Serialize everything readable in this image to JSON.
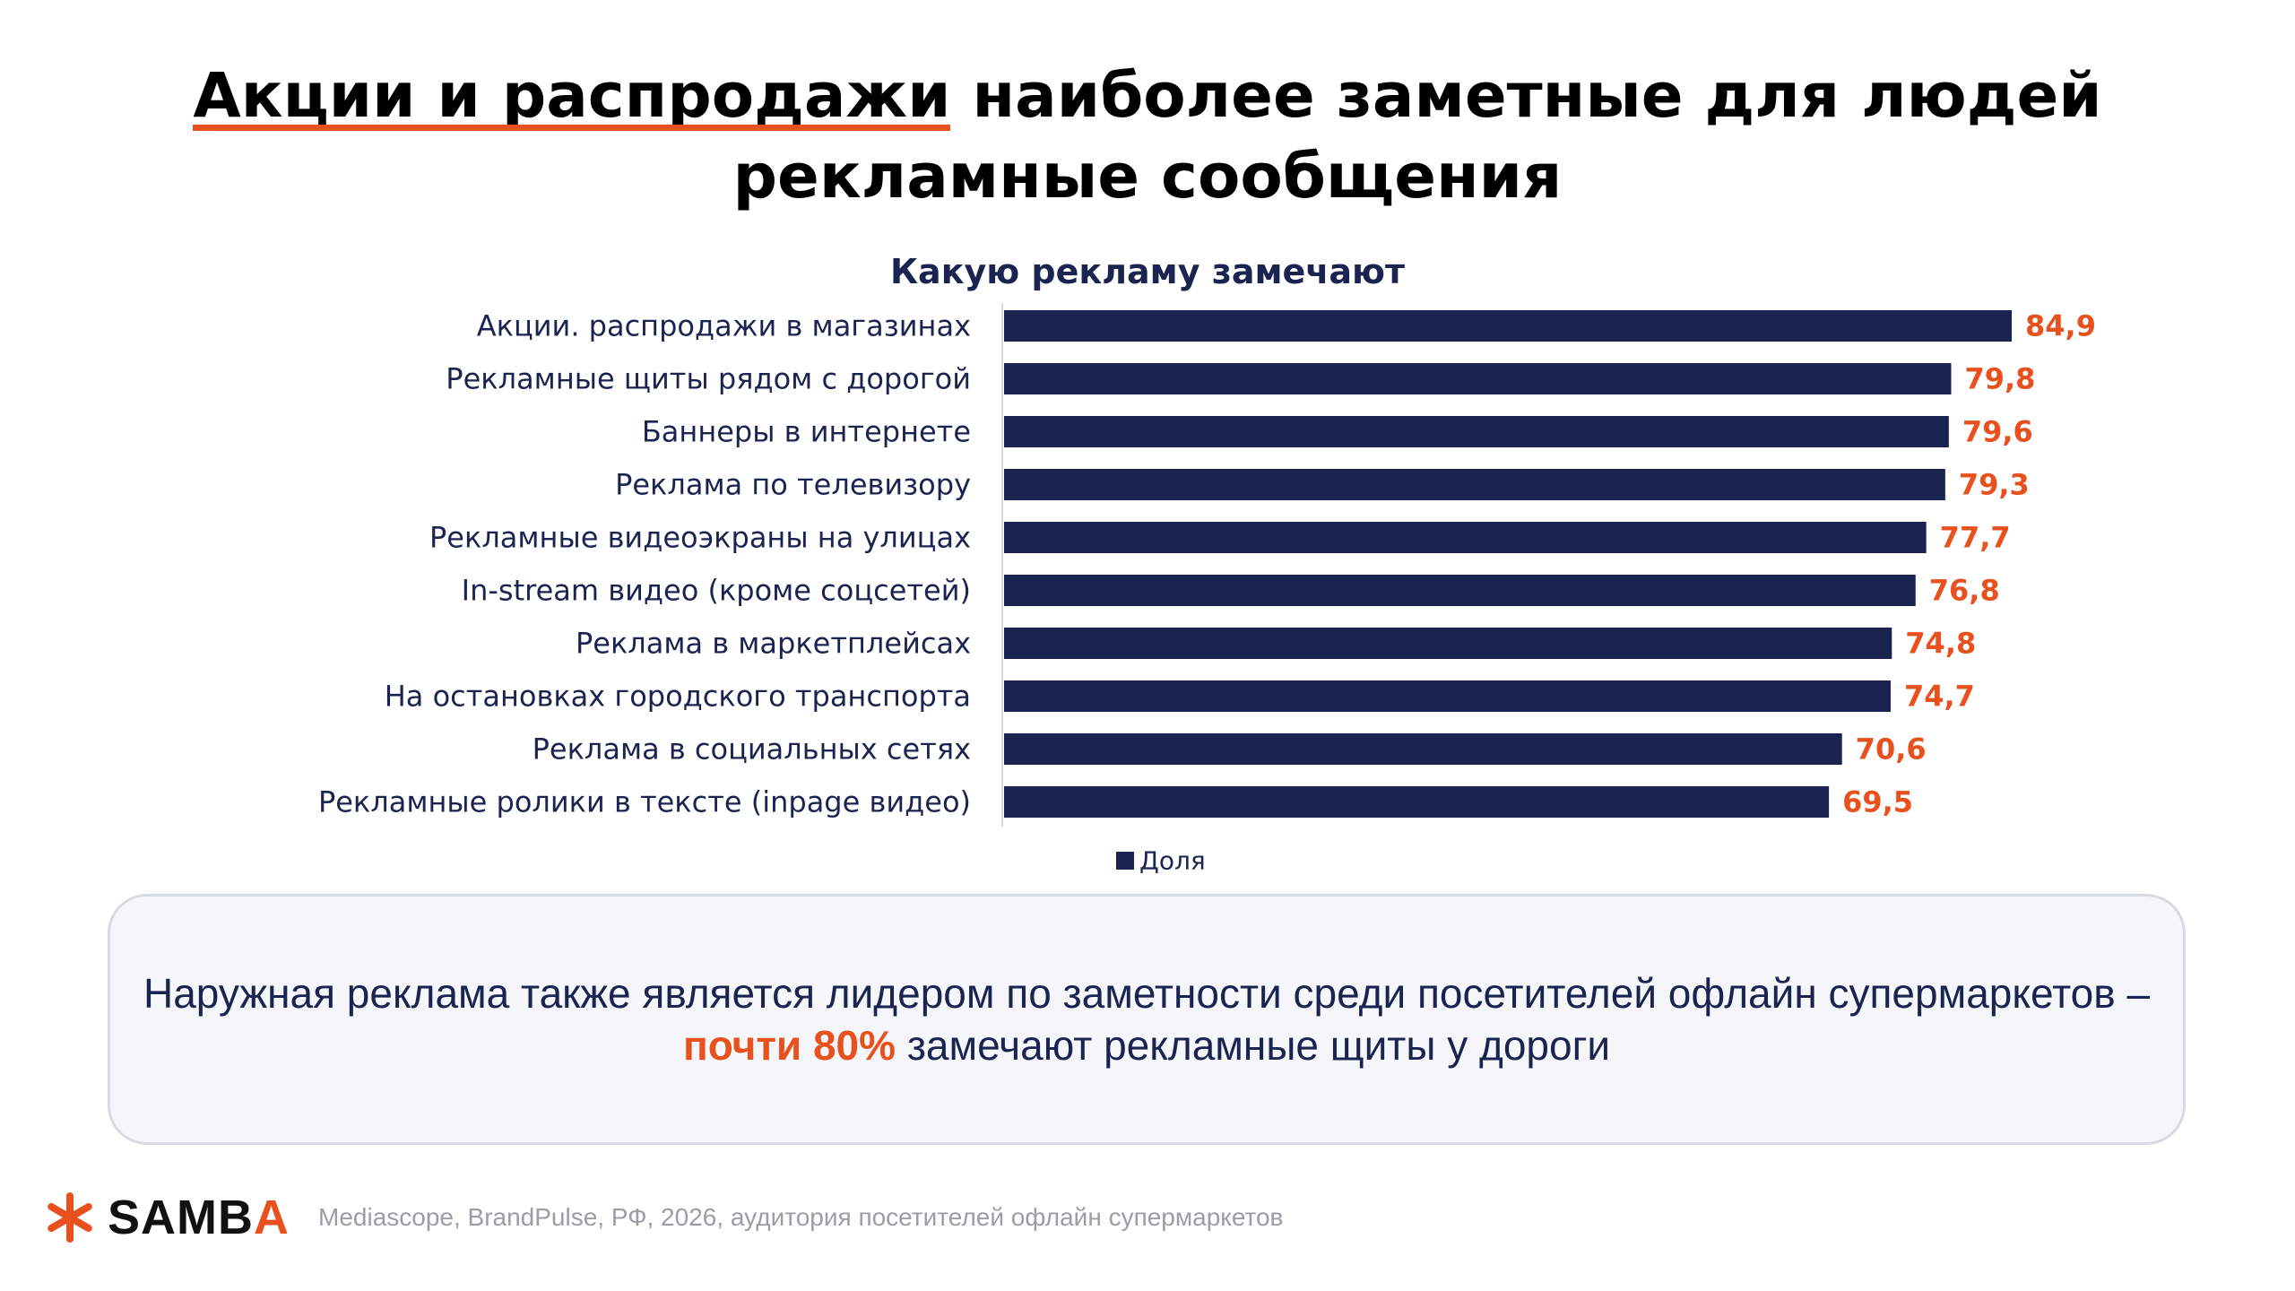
{
  "title": {
    "highlight": "Акции и распродажи",
    "line1_rest": "наиболее заметные для людей",
    "line2": "рекламные сообщения"
  },
  "colors": {
    "bar": "#1B2451",
    "value_label": "#E8501E",
    "accent": "#E8501E",
    "category_label": "#1B2451"
  },
  "chart_data": {
    "type": "bar",
    "orientation": "horizontal",
    "title": "Какую рекламу замечают",
    "categories": [
      "Акции. распродажи в магазинах",
      "Рекламные щиты рядом с дорогой",
      "Баннеры в интернете",
      "Реклама по телевизору",
      "Рекламные видеоэкраны на улицах",
      "In-stream видео (кроме соцсетей)",
      "Реклама в маркетплейсах",
      "На остановках городского транспорта",
      "Реклама в социальных сетях",
      "Рекламные ролики в тексте (inpage видео)"
    ],
    "series": [
      {
        "name": "Доля",
        "values": [
          84.9,
          79.8,
          79.6,
          79.3,
          77.7,
          76.8,
          74.8,
          74.7,
          70.6,
          69.5
        ],
        "labels": [
          "84,9",
          "79,8",
          "79,6",
          "79,3",
          "77,7",
          "76,8",
          "74,8",
          "74,7",
          "70,6",
          "69,5"
        ]
      }
    ],
    "xlim": [
      0,
      84.9
    ],
    "grid": false,
    "legend": "bottom"
  },
  "callout": {
    "before": "Наружная реклама также является лидером по заметности среди посетителей офлайн супермаркетов – ",
    "highlight": "почти 80%",
    "after": " замечают рекламные щиты у дороги"
  },
  "footer": {
    "logo_main": "SAMB",
    "logo_accent": "A",
    "source": "Mediascope, BrandPulse, РФ, 2026, аудитория посетителей офлайн супермаркетов"
  }
}
